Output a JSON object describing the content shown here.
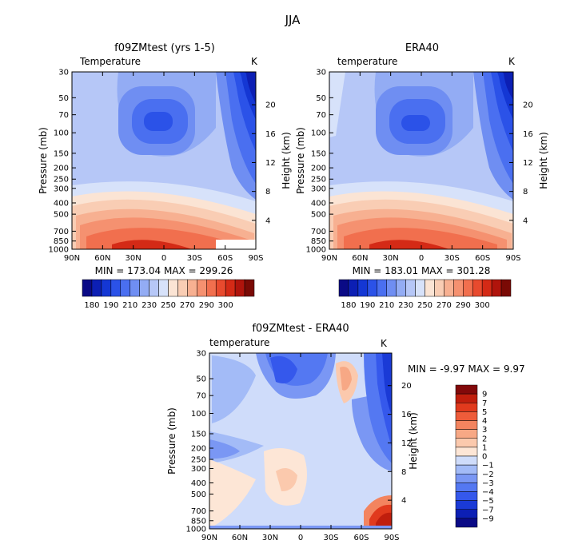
{
  "season_title": "JJA",
  "colors": {
    "model_scale": [
      "#0a0a86",
      "#0c1fb4",
      "#1437d4",
      "#2b52e8",
      "#4a6ff0",
      "#6f8ef2",
      "#93acf4",
      "#b6c7f7",
      "#d7e2fa",
      "#fbe4d4",
      "#f9cdb4",
      "#f7b091",
      "#f59170",
      "#f16f4e",
      "#e84a2e",
      "#d42a16",
      "#b0140c",
      "#7a0a05"
    ],
    "diff_scale": [
      "#0a0a86",
      "#0c1fb4",
      "#1a3ad6",
      "#3558ec",
      "#5478f2",
      "#7a97f4",
      "#a3bbf7",
      "#cfdcfa",
      "#fde6d6",
      "#fbc9ad",
      "#f7a885",
      "#f3845f",
      "#ee5c3a",
      "#e13a1d",
      "#c01e0d",
      "#82090a"
    ]
  },
  "chart_data": [
    {
      "type": "contour",
      "name": "model",
      "title": "f09ZMtest (yrs 1-5)",
      "left_label": "Temperature",
      "units": "K",
      "ylabel": "Pressure (mb)",
      "ylabel_right": "Height (km)",
      "x_ticks": [
        "90N",
        "60N",
        "30N",
        "0",
        "30S",
        "60S",
        "90S"
      ],
      "y_ticks": [
        "30",
        "50",
        "70",
        "100",
        "150",
        "200",
        "250",
        "300",
        "400",
        "500",
        "700",
        "850",
        "1000"
      ],
      "height_ticks": [
        "20",
        "16",
        "12",
        "8",
        "4"
      ],
      "stats": "MIN = 173.04   MAX = 299.26",
      "levels": [
        175,
        180,
        185,
        190,
        195,
        200,
        205,
        210,
        215,
        220,
        230,
        240,
        250,
        260,
        270,
        280,
        290,
        295,
        300
      ],
      "colorbar_labels": [
        "180",
        "190",
        "210",
        "230",
        "250",
        "270",
        "290",
        "300"
      ]
    },
    {
      "type": "contour",
      "name": "era40",
      "title": "ERA40",
      "left_label": "temperature",
      "units": "K",
      "ylabel": "Pressure (mb)",
      "ylabel_right": "Height (km)",
      "x_ticks": [
        "90N",
        "60N",
        "30N",
        "0",
        "30S",
        "60S",
        "90S"
      ],
      "y_ticks": [
        "30",
        "50",
        "70",
        "100",
        "150",
        "200",
        "250",
        "300",
        "400",
        "500",
        "700",
        "850",
        "1000"
      ],
      "height_ticks": [
        "20",
        "16",
        "12",
        "8",
        "4"
      ],
      "stats": "MIN = 183.01   MAX = 301.28",
      "colorbar_labels": [
        "180",
        "190",
        "210",
        "230",
        "250",
        "270",
        "290",
        "300"
      ]
    },
    {
      "type": "contour",
      "name": "difference",
      "title": "f09ZMtest - ERA40",
      "left_label": "temperature",
      "units": "K",
      "ylabel": "Pressure (mb)",
      "ylabel_right": "Height (km)",
      "x_ticks": [
        "90N",
        "60N",
        "30N",
        "0",
        "30S",
        "60S",
        "90S"
      ],
      "y_ticks": [
        "30",
        "50",
        "70",
        "100",
        "150",
        "200",
        "250",
        "300",
        "400",
        "500",
        "700",
        "850",
        "1000"
      ],
      "height_ticks": [
        "20",
        "16",
        "12",
        "8",
        "4"
      ],
      "stats": "MIN =    -9.97   MAX =     9.97",
      "levels": [
        -9,
        -7,
        -5,
        -4,
        -3,
        -2,
        -1,
        0,
        1,
        2,
        3,
        4,
        5,
        7,
        9
      ],
      "colorbar_labels": [
        "9",
        "7",
        "5",
        "4",
        "3",
        "2",
        "1",
        "0",
        "−1",
        "−2",
        "−3",
        "−4",
        "−5",
        "−7",
        "−9"
      ]
    }
  ]
}
